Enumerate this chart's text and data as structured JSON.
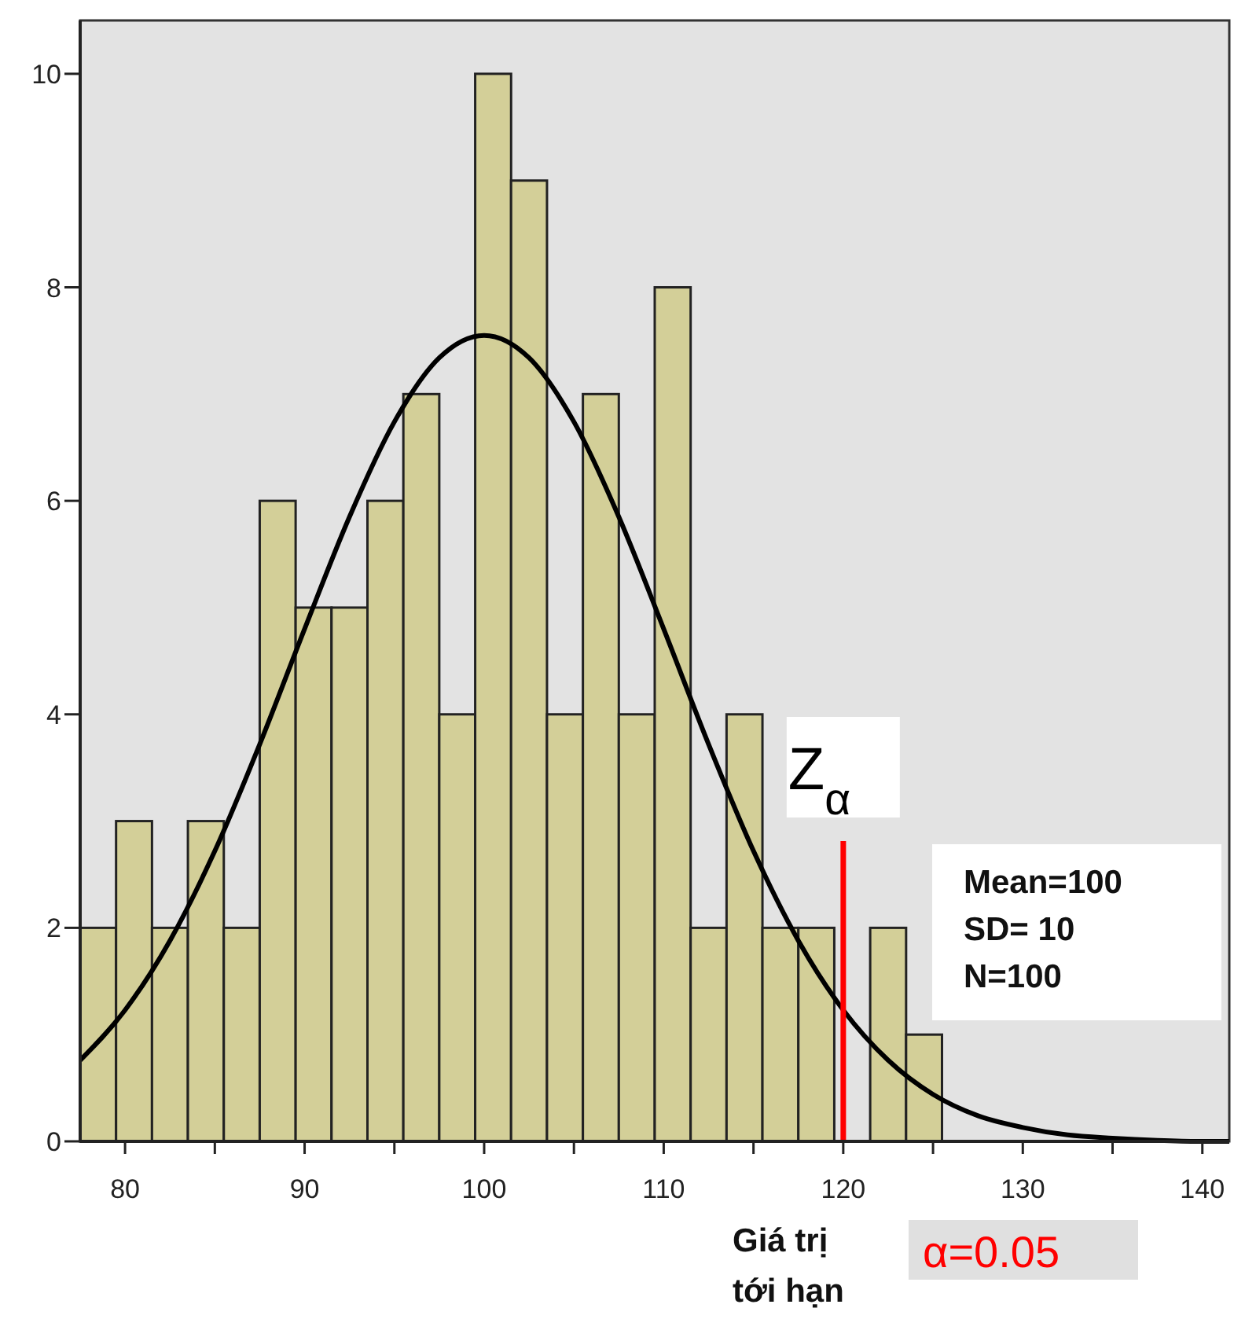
{
  "chart_data": {
    "type": "histogram",
    "bins": [
      77.5,
      79.5,
      81.5,
      83.5,
      85.5,
      87.5,
      89.5,
      91.5,
      93.5,
      95.5,
      97.5,
      99.5,
      101.5,
      103.5,
      105.5,
      107.5,
      109.5,
      111.5,
      113.5,
      115.5,
      117.5,
      119.5,
      121.5,
      123.5,
      125.5
    ],
    "values": [
      2,
      3,
      2,
      3,
      2,
      6,
      5,
      5,
      6,
      7,
      4,
      10,
      9,
      4,
      7,
      4,
      8,
      2,
      4,
      2,
      2,
      0,
      2,
      1
    ],
    "color": "#d3cf98",
    "series": [
      {
        "type": "line",
        "color": "#000000",
        "x": [
          77.5,
          80,
          82.5,
          85,
          87.5,
          90,
          92.5,
          95,
          97.5,
          100,
          102.5,
          105,
          107.5,
          110,
          112.5,
          115,
          117.5,
          120,
          122.5,
          125,
          127.5,
          130,
          132.5,
          135,
          137.5,
          140,
          141.5
        ],
        "values": [
          0.76,
          1.23,
          1.88,
          2.72,
          3.72,
          4.8,
          5.85,
          6.74,
          7.34,
          7.55,
          7.34,
          6.74,
          5.85,
          4.8,
          3.72,
          2.72,
          1.88,
          1.23,
          0.76,
          0.44,
          0.24,
          0.13,
          0.06,
          0.03,
          0.01,
          0,
          0
        ]
      }
    ],
    "xlim": [
      77.5,
      141.5
    ],
    "xticks": [
      80,
      {
        "value": 85,
        "label": null
      },
      90,
      {
        "value": 95,
        "label": null
      },
      100,
      {
        "value": 105,
        "label": null
      },
      110,
      {
        "value": 115,
        "label": null
      },
      120,
      {
        "value": 125,
        "label": null
      },
      130,
      {
        "value": 135,
        "label": null
      },
      140
    ],
    "ylim": [
      0,
      10.5
    ],
    "yticks": [
      0,
      2,
      4,
      6,
      8,
      10
    ],
    "ref_lines": [
      {
        "axis": "x",
        "value": 120,
        "label": "Z$_{α}$",
        "color": "#ff0000"
      }
    ],
    "annotations": [
      "Mean=100",
      "SD= 10",
      "N=100",
      "Giá trị tới hạn",
      "α=0.05"
    ]
  }
}
